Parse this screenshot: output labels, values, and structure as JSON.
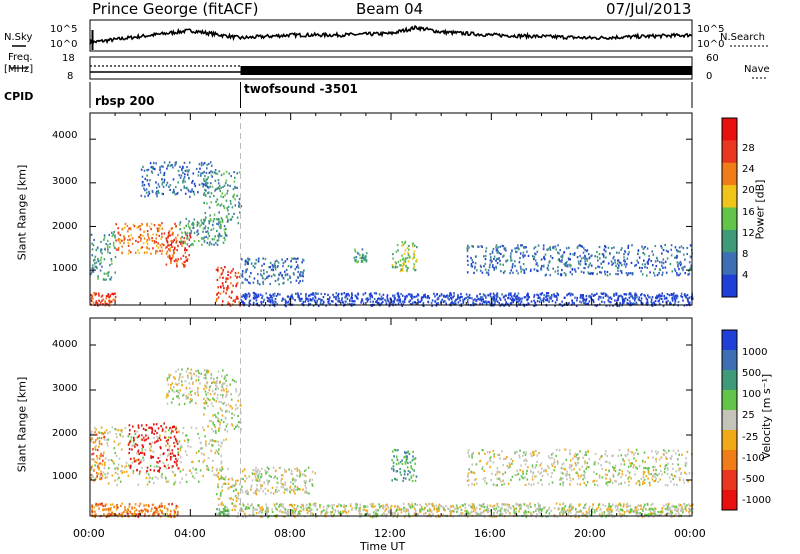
{
  "header": {
    "station": "Prince George (fitACF)",
    "beam": "Beam 04",
    "date": "07/Jul/2013"
  },
  "status": {
    "left_label_sky": "N.Sky",
    "right_label_search": "N.Search",
    "sky_scale_top": "10^5",
    "sky_scale_bottom": "10^0",
    "right_scale_top": "10^5",
    "right_scale_bottom": "10^0",
    "freq_label_line1": "Freq.",
    "freq_label_line2": "[MHz]",
    "freq_top": "18",
    "freq_bottom": "8",
    "nave_label": "Nave",
    "nave_top": "60",
    "nave_bottom": "0",
    "cpid_label": "CPID",
    "cpid_1": "rbsp 200",
    "cpid_2": "twofsound -3501"
  },
  "axes": {
    "ylabel": "Slant Range [km]",
    "xlabel": "Time UT",
    "yticks": [
      "1000",
      "2000",
      "3000",
      "4000"
    ],
    "xticks": [
      "00:00",
      "04:00",
      "08:00",
      "12:00",
      "16:00",
      "20:00",
      "00:00"
    ]
  },
  "colorbars": {
    "power": {
      "label": "Power [dB]",
      "ticks": [
        "4",
        "8",
        "12",
        "16",
        "20",
        "24",
        "28"
      ],
      "colors": [
        "#1f3fd6",
        "#3d6fb5",
        "#3e9a78",
        "#62c54a",
        "#f0c418",
        "#f07d18",
        "#e8361f",
        "#e80f0f"
      ]
    },
    "velocity": {
      "label": "Velocity [m s⁻¹]",
      "ticks": [
        "1000",
        "500",
        "100",
        "25",
        "-25",
        "-100",
        "-500",
        "-1000"
      ],
      "colors": [
        "#1f3fd6",
        "#3d6fb5",
        "#3e9a78",
        "#62c54a",
        "#c4c4bb",
        "#f0aa18",
        "#f07d18",
        "#e8361f",
        "#e80f0f"
      ]
    }
  },
  "chart_data": [
    {
      "type": "line",
      "title": "N.Sky / N.Search",
      "x": [
        0,
        2,
        4,
        6,
        8,
        10,
        12,
        13,
        14,
        16,
        18,
        20,
        22,
        24
      ],
      "series": [
        {
          "name": "N.Sky",
          "values": [
            0.25,
            0.45,
            0.65,
            0.4,
            0.5,
            0.5,
            0.55,
            0.75,
            0.6,
            0.5,
            0.45,
            0.4,
            0.45,
            0.5
          ]
        }
      ],
      "xlim": [
        0,
        24
      ]
    },
    {
      "type": "line",
      "title": "Freq. / Nave",
      "x": [
        0,
        6,
        6,
        24
      ],
      "series": [
        {
          "name": "Freq.",
          "values": [
            10.5,
            10.5,
            11.5,
            11.5
          ]
        },
        {
          "name": "Nave",
          "values": [
            38,
            38,
            22,
            22
          ]
        }
      ],
      "ylim": [
        8,
        18
      ],
      "xlim": [
        0,
        24
      ]
    },
    {
      "type": "heatmap",
      "title": "Power [dB]",
      "x_unit": "hours UT",
      "y_unit": "km",
      "xlim": [
        0,
        24
      ],
      "ylim": [
        200,
        4600
      ],
      "regions": [
        {
          "t0": 0.0,
          "t1": 1.0,
          "r0": 800,
          "r1": 1900,
          "level": 2
        },
        {
          "t0": 1.0,
          "t1": 3.5,
          "r0": 1400,
          "r1": 2100,
          "level": 5
        },
        {
          "t0": 3.0,
          "t1": 4.0,
          "r0": 1100,
          "r1": 1900,
          "level": 6
        },
        {
          "t0": 3.5,
          "t1": 5.5,
          "r0": 1600,
          "r1": 2200,
          "level": 2
        },
        {
          "t0": 2.0,
          "t1": 5.0,
          "r0": 2700,
          "r1": 3500,
          "level": 1
        },
        {
          "t0": 4.5,
          "t1": 6.0,
          "r0": 2100,
          "r1": 3300,
          "level": 2
        },
        {
          "t0": 0.0,
          "t1": 1.0,
          "r0": 200,
          "r1": 500,
          "level": 6
        },
        {
          "t0": 5.0,
          "t1": 6.0,
          "r0": 200,
          "r1": 1100,
          "level": 6
        },
        {
          "t0": 6.0,
          "t1": 8.5,
          "r0": 700,
          "r1": 1300,
          "level": 1
        },
        {
          "t0": 6.0,
          "t1": 24.0,
          "r0": 200,
          "r1": 500,
          "level": 0
        },
        {
          "t0": 10.5,
          "t1": 11.0,
          "r0": 1200,
          "r1": 1500,
          "level": 2
        },
        {
          "t0": 12.0,
          "t1": 13.0,
          "r0": 1000,
          "r1": 1700,
          "level": 3
        },
        {
          "t0": 15.0,
          "t1": 24.0,
          "r0": 900,
          "r1": 1600,
          "level": 1
        }
      ]
    },
    {
      "type": "heatmap",
      "title": "Velocity [m s⁻¹]",
      "x_unit": "hours UT",
      "y_unit": "km",
      "xlim": [
        0,
        24
      ],
      "ylim": [
        200,
        4600
      ],
      "regions": [
        {
          "t0": 0.0,
          "t1": 5.5,
          "r0": 900,
          "r1": 2200,
          "level": 4
        },
        {
          "t0": 1.5,
          "t1": 3.5,
          "r0": 1200,
          "r1": 2300,
          "level": 8
        },
        {
          "t0": 0.0,
          "t1": 0.6,
          "r0": 1000,
          "r1": 2100,
          "level": 6
        },
        {
          "t0": 3.0,
          "t1": 5.5,
          "r0": 2700,
          "r1": 3500,
          "level": 4
        },
        {
          "t0": 4.5,
          "t1": 6.0,
          "r0": 2100,
          "r1": 3300,
          "level": 4
        },
        {
          "t0": 0.0,
          "t1": 3.5,
          "r0": 200,
          "r1": 500,
          "level": 6
        },
        {
          "t0": 5.0,
          "t1": 6.0,
          "r0": 200,
          "r1": 1100,
          "level": 4
        },
        {
          "t0": 5.0,
          "t1": 5.5,
          "r0": 200,
          "r1": 400,
          "level": 3
        },
        {
          "t0": 6.0,
          "t1": 9.0,
          "r0": 700,
          "r1": 1300,
          "level": 4
        },
        {
          "t0": 6.0,
          "t1": 24.0,
          "r0": 200,
          "r1": 500,
          "level": 4
        },
        {
          "t0": 12.0,
          "t1": 13.0,
          "r0": 1000,
          "r1": 1700,
          "level": 2
        },
        {
          "t0": 15.0,
          "t1": 24.0,
          "r0": 900,
          "r1": 1700,
          "level": 4
        }
      ]
    }
  ]
}
